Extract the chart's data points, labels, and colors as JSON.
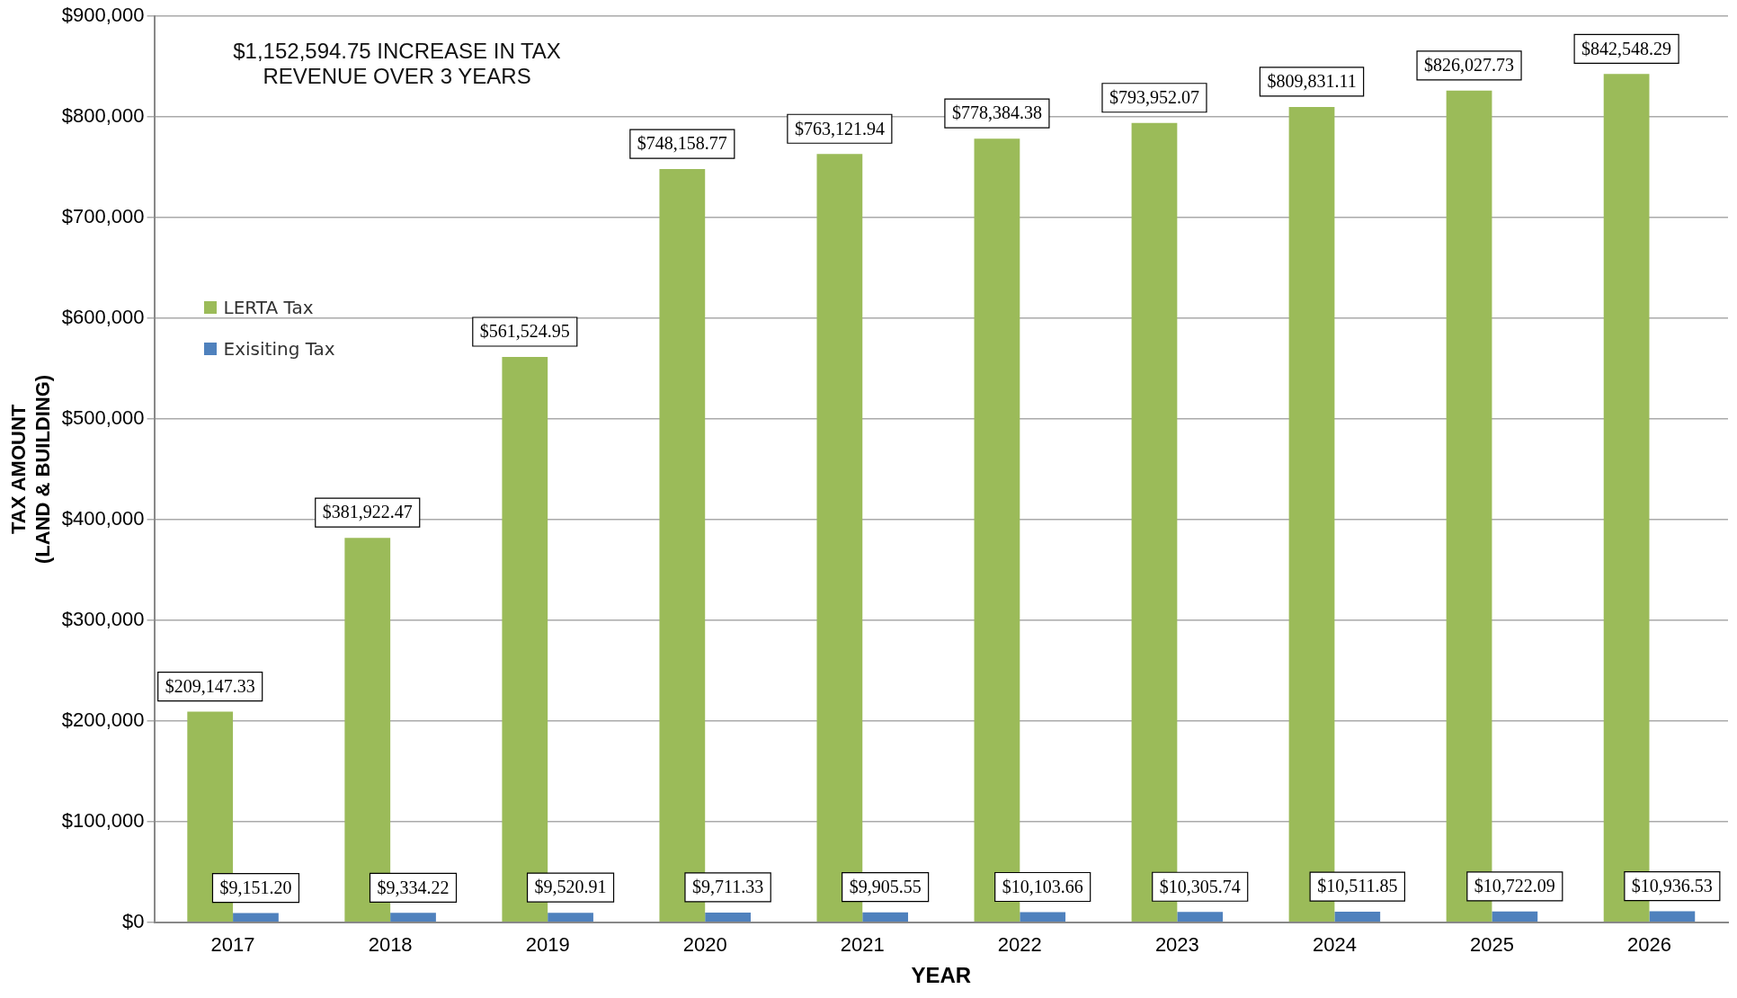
{
  "chart_data": {
    "type": "bar",
    "xlabel": "YEAR",
    "ylabel": "TAX AMOUNT\n(LAND & BUILDING)",
    "annotations": [
      "$1,152,594.75 INCREASE IN TAX REVENUE OVER 3 YEARS"
    ],
    "categories": [
      "2017",
      "2018",
      "2019",
      "2020",
      "2021",
      "2022",
      "2023",
      "2024",
      "2025",
      "2026"
    ],
    "series": [
      {
        "name": "LERTA Tax",
        "color": "#9bbb59",
        "values": [
          209147.33,
          381922.47,
          561524.95,
          748158.77,
          763121.94,
          778384.38,
          793952.07,
          809831.11,
          826027.73,
          842548.29
        ],
        "value_labels": [
          "$209,147.33",
          "$381,922.47",
          "$561,524.95",
          "$748,158.77",
          "$763,121.94",
          "$778,384.38",
          "$793,952.07",
          "$809,831.11",
          "$826,027.73",
          "$842,548.29"
        ]
      },
      {
        "name": "Exisiting Tax",
        "color": "#4f81bd",
        "values": [
          9151.2,
          9334.22,
          9520.91,
          9711.33,
          9905.55,
          10103.66,
          10305.74,
          10511.85,
          10722.09,
          10936.53
        ],
        "value_labels": [
          "$9,151.20",
          "$9,334.22",
          "$9,520.91",
          "$9,711.33",
          "$9,905.55",
          "$10,103.66",
          "$10,305.74",
          "$10,511.85",
          "$10,722.09",
          "$10,936.53"
        ]
      }
    ],
    "ylim": [
      0,
      900000
    ],
    "yticks": [
      {
        "value": 0,
        "label": "$0"
      },
      {
        "value": 100000,
        "label": "$100,000"
      },
      {
        "value": 200000,
        "label": "$200,000"
      },
      {
        "value": 300000,
        "label": "$300,000"
      },
      {
        "value": 400000,
        "label": "$400,000"
      },
      {
        "value": 500000,
        "label": "$500,000"
      },
      {
        "value": 600000,
        "label": "$600,000"
      },
      {
        "value": 700000,
        "label": "$700,000"
      },
      {
        "value": 800000,
        "label": "$800,000"
      },
      {
        "value": 900000,
        "label": "$900,000"
      }
    ],
    "grid": "y",
    "legend": "left"
  }
}
